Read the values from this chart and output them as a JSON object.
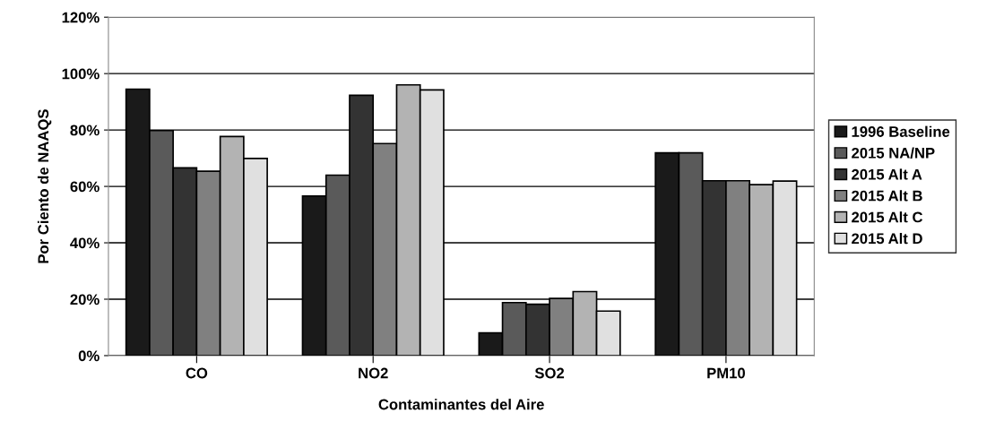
{
  "chart_data": {
    "type": "bar",
    "xlabel": "Contaminantes del Aire",
    "ylabel": "Por Ciento de NAAQS",
    "categories": [
      "CO",
      "NO2",
      "SO2",
      "PM10"
    ],
    "series": [
      {
        "name": "1996 Baseline",
        "color": "#1a1a1a",
        "values": [
          94.5,
          56.6,
          8.1,
          71.9
        ]
      },
      {
        "name": "2015 NA/NP",
        "color": "#5a5a5a",
        "values": [
          79.8,
          64.0,
          18.8,
          71.9
        ]
      },
      {
        "name": "2015 Alt A",
        "color": "#333333",
        "values": [
          66.6,
          92.3,
          18.2,
          62.0
        ]
      },
      {
        "name": "2015 Alt B",
        "color": "#808080",
        "values": [
          65.4,
          75.2,
          20.3,
          62.0
        ]
      },
      {
        "name": "2015 Alt C",
        "color": "#b3b3b3",
        "values": [
          77.7,
          96.0,
          22.7,
          60.6
        ]
      },
      {
        "name": "2015 Alt D",
        "color": "#e0e0e0",
        "values": [
          69.9,
          94.2,
          15.8,
          61.9
        ]
      }
    ],
    "ylim": [
      0,
      120
    ],
    "yticks": [
      {
        "value": 0,
        "label": "0%"
      },
      {
        "value": 20,
        "label": "20%"
      },
      {
        "value": 40,
        "label": "40%"
      },
      {
        "value": 60,
        "label": "60%"
      },
      {
        "value": 80,
        "label": "80%"
      },
      {
        "value": 100,
        "label": "100%"
      },
      {
        "value": 120,
        "label": "120%"
      }
    ],
    "grid": "y",
    "legend": "right"
  }
}
